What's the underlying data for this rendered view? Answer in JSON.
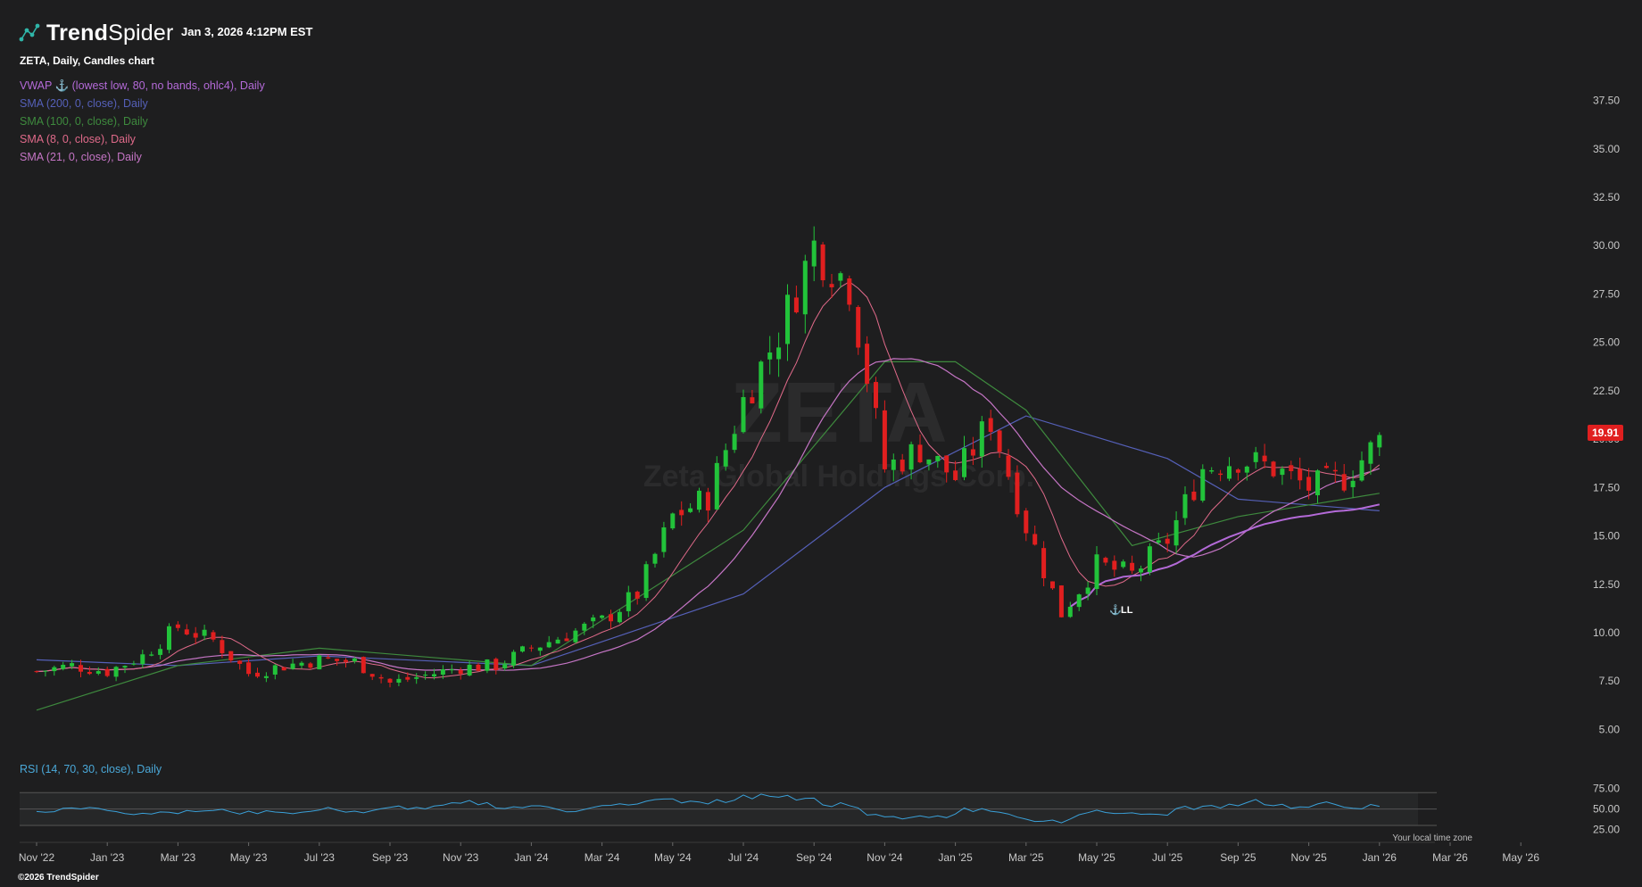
{
  "header": {
    "brand_bold": "Trend",
    "brand_thin": "Spider",
    "timestamp": "Jan 3, 2026 4:12PM EST"
  },
  "chart_title": "ZETA, Daily, Candles chart",
  "watermark": {
    "ticker": "ZETA",
    "name": "Zeta Global Holdings Corp."
  },
  "indicators": [
    {
      "label": "VWAP ⚓ (lowest low, 80, no bands, ohlc4), Daily",
      "color": "#b46ad8"
    },
    {
      "label": "SMA (200, 0, close), Daily",
      "color": "#5560b8"
    },
    {
      "label": "SMA (100, 0, close), Daily",
      "color": "#3e8a3e"
    },
    {
      "label": "SMA (8, 0, close), Daily",
      "color": "#e06a8a"
    },
    {
      "label": "SMA (21, 0, close), Daily",
      "color": "#c575c5"
    }
  ],
  "rsi_label": "RSI (14, 70, 30, close), Daily",
  "anchor_label": "LL",
  "last_price": "19.91",
  "local_time_label": "Your local time zone",
  "copyright": "©2026 TrendSpider",
  "colors": {
    "up": "#22c33a",
    "down": "#e01f1f",
    "rsi": "#3aa0d8",
    "background": "#1e1e1f"
  },
  "chart_data": {
    "type": "candlestick",
    "title": "ZETA, Daily, Candles chart",
    "y_ticks": [
      5.0,
      7.5,
      10.0,
      12.5,
      15.0,
      17.5,
      20.0,
      22.5,
      25.0,
      27.5,
      30.0,
      32.5,
      35.0,
      37.5
    ],
    "y_tick_labels": [
      "5.00",
      "7.50",
      "10.00",
      "12.50",
      "15.00",
      "17.50",
      "20.00",
      "22.50",
      "25.00",
      "27.50",
      "30.00",
      "32.50",
      "35.00",
      "37.50"
    ],
    "ylim": [
      3.5,
      39.0
    ],
    "x_ticks": [
      "Nov '22",
      "Jan '23",
      "Mar '23",
      "May '23",
      "Jul '23",
      "Sep '23",
      "Nov '23",
      "Jan '24",
      "Mar '24",
      "May '24",
      "Jul '24",
      "Sep '24",
      "Nov '24",
      "Jan '25",
      "Mar '25",
      "May '25",
      "Jul '25",
      "Sep '25",
      "Nov '25",
      "Jan '26",
      "Mar '26",
      "May '26"
    ],
    "close_trend": [
      [
        "Nov '22",
        8.0
      ],
      [
        "Dec '22",
        8.3
      ],
      [
        "Jan '23",
        8.0
      ],
      [
        "Feb '23",
        8.8
      ],
      [
        "Mar '23",
        10.3
      ],
      [
        "Apr '23",
        9.6
      ],
      [
        "May '23",
        7.9
      ],
      [
        "Jun '23",
        8.3
      ],
      [
        "Jul '23",
        8.6
      ],
      [
        "Aug '23",
        8.5
      ],
      [
        "Sep '23",
        7.4
      ],
      [
        "Oct '23",
        7.8
      ],
      [
        "Nov '23",
        8.2
      ],
      [
        "Dec '23",
        8.3
      ],
      [
        "Jan '24",
        9.2
      ],
      [
        "Feb '24",
        9.9
      ],
      [
        "Mar '24",
        10.6
      ],
      [
        "Apr '24",
        12.0
      ],
      [
        "May '24",
        16.0
      ],
      [
        "Jun '24",
        17.0
      ],
      [
        "Jul '24",
        22.0
      ],
      [
        "Aug '24",
        25.5
      ],
      [
        "Sep '24",
        30.0
      ],
      [
        "Oct '24",
        28.0
      ],
      [
        "Nov '24",
        18.5
      ],
      [
        "Dec '24",
        19.5
      ],
      [
        "Jan '25",
        18.0
      ],
      [
        "Feb '25",
        21.0
      ],
      [
        "Mar '25",
        15.5
      ],
      [
        "Apr '25",
        11.0
      ],
      [
        "May '25",
        13.5
      ],
      [
        "Jun '25",
        13.0
      ],
      [
        "Jul '25",
        14.8
      ],
      [
        "Aug '25",
        18.5
      ],
      [
        "Sep '25",
        19.0
      ],
      [
        "Oct '25",
        18.5
      ],
      [
        "Nov '25",
        17.5
      ],
      [
        "Dec '25",
        18.0
      ],
      [
        "Jan '26",
        19.91
      ]
    ],
    "sma200_trend": [
      [
        "Nov '22",
        8.6
      ],
      [
        "Mar '23",
        8.3
      ],
      [
        "Jul '23",
        8.8
      ],
      [
        "Jan '24",
        8.3
      ],
      [
        "Jul '24",
        12.0
      ],
      [
        "Nov '24",
        17.5
      ],
      [
        "Mar '25",
        21.2
      ],
      [
        "Jul '25",
        19.0
      ],
      [
        "Sep '25",
        16.9
      ],
      [
        "Jan '26",
        16.3
      ]
    ],
    "sma100_trend": [
      [
        "Nov '22",
        6.0
      ],
      [
        "Mar '23",
        8.3
      ],
      [
        "Jul '23",
        9.2
      ],
      [
        "Jan '24",
        8.3
      ],
      [
        "Jul '24",
        15.3
      ],
      [
        "Nov '24",
        24.0
      ],
      [
        "Jan '25",
        24.0
      ],
      [
        "Mar '25",
        21.5
      ],
      [
        "Jun '25",
        14.5
      ],
      [
        "Sep '25",
        16.0
      ],
      [
        "Jan '26",
        17.2
      ]
    ],
    "rsi": {
      "levels": [
        30,
        50,
        70
      ],
      "tick_labels": [
        "75.00",
        "50.00",
        "25.00"
      ]
    }
  }
}
